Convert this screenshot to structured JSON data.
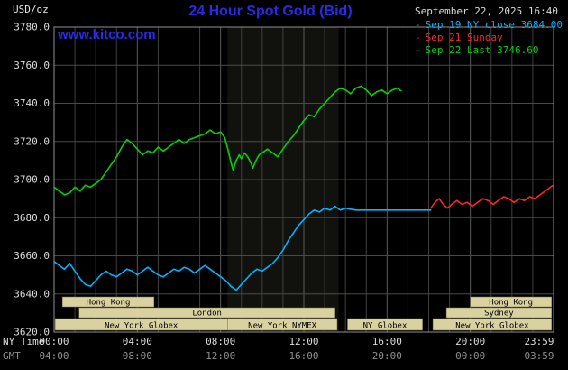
{
  "header": {
    "units_label": "USD/oz",
    "title": "24 Hour Spot Gold (Bid)",
    "datetime": "September 22, 2025 16:40",
    "legend": [
      {
        "marker": "-",
        "label": "Sep 19 NY close 3684.00",
        "color": "#00b4ff"
      },
      {
        "marker": "-",
        "label": "Sep 21 Sunday",
        "color": "#ff2525"
      },
      {
        "marker": "-",
        "label": "Sep 22 Last 3746.60",
        "color": "#00d400"
      }
    ]
  },
  "watermark": {
    "text": "www.kitco.com",
    "color": "#2a2ae8"
  },
  "axes": {
    "ny_time_label": "NY Time",
    "gmt_label": "GMT",
    "x_ticks": [
      {
        "hour": 0,
        "ny": "00:00",
        "gmt": "04:00"
      },
      {
        "hour": 4,
        "ny": "04:00",
        "gmt": "08:00"
      },
      {
        "hour": 8,
        "ny": "08:00",
        "gmt": "12:00"
      },
      {
        "hour": 12,
        "ny": "12:00",
        "gmt": "16:00"
      },
      {
        "hour": 16,
        "ny": "16:00",
        "gmt": "20:00"
      },
      {
        "hour": 20,
        "ny": "20:00",
        "gmt": "00:00"
      },
      {
        "hour": 23.983,
        "ny": "23:59",
        "gmt": "03:59"
      }
    ],
    "y_ticks": [
      "3780.0",
      "3760.0",
      "3740.0",
      "3720.0",
      "3700.0",
      "3680.0",
      "3660.0",
      "3640.0",
      "3620.0"
    ]
  },
  "colors": {
    "background": "#000000",
    "grid_minor": "#3f3f3f",
    "grid_major": "#5a5a5a",
    "frame": "#909090",
    "axis_text": "#dcdcdc",
    "gmt_text": "#8f8f8f",
    "title": "#2a2ae8",
    "datetime_text": "#d9d9d9"
  },
  "chart_data": {
    "type": "line",
    "title": "24 Hour Spot Gold (Bid)",
    "ylabel": "USD/oz",
    "ylim": [
      3620,
      3780
    ],
    "x_range_hours": [
      0,
      24
    ],
    "grid": true,
    "legend_position": "top-right",
    "highlight_band": {
      "start_hour": 8.33,
      "end_hour": 13.67
    },
    "session_style": {
      "fill": "#d9d2a0",
      "border": "#7a7550",
      "text": "#000000"
    },
    "sessions": [
      {
        "row": 0,
        "label": "Hong Kong",
        "start": 0.4,
        "end": 4.8
      },
      {
        "row": 0,
        "label": "Hong Kong",
        "start": 20.0,
        "end": 23.9
      },
      {
        "row": 1,
        "label": "London",
        "start": 1.2,
        "end": 13.5
      },
      {
        "row": 1,
        "label": "Sydney",
        "start": 18.85,
        "end": 23.9
      },
      {
        "row": 2,
        "label": "New York Globex",
        "start": 0.05,
        "end": 8.33
      },
      {
        "row": 2,
        "label": "New York NYMEX",
        "start": 8.33,
        "end": 13.6
      },
      {
        "row": 2,
        "label": "NY Globex",
        "start": 14.1,
        "end": 17.7
      },
      {
        "row": 2,
        "label": "New York Globex",
        "start": 18.2,
        "end": 23.9
      }
    ],
    "series": [
      {
        "id": "sep19",
        "name": "Sep 19 NY close 3684.00",
        "color": "#00b4ff",
        "points": [
          [
            0.0,
            3657
          ],
          [
            0.25,
            3655
          ],
          [
            0.5,
            3653
          ],
          [
            0.75,
            3656
          ],
          [
            1.0,
            3652
          ],
          [
            1.25,
            3648
          ],
          [
            1.5,
            3645
          ],
          [
            1.75,
            3644
          ],
          [
            2.0,
            3647
          ],
          [
            2.25,
            3650
          ],
          [
            2.5,
            3652
          ],
          [
            2.75,
            3650
          ],
          [
            3.0,
            3649
          ],
          [
            3.25,
            3651
          ],
          [
            3.5,
            3653
          ],
          [
            3.75,
            3652
          ],
          [
            4.0,
            3650
          ],
          [
            4.25,
            3652
          ],
          [
            4.5,
            3654
          ],
          [
            4.75,
            3652
          ],
          [
            5.0,
            3650
          ],
          [
            5.25,
            3649
          ],
          [
            5.5,
            3651
          ],
          [
            5.75,
            3653
          ],
          [
            6.0,
            3652
          ],
          [
            6.25,
            3654
          ],
          [
            6.5,
            3653
          ],
          [
            6.75,
            3651
          ],
          [
            7.0,
            3653
          ],
          [
            7.25,
            3655
          ],
          [
            7.5,
            3653
          ],
          [
            7.75,
            3651
          ],
          [
            8.0,
            3649
          ],
          [
            8.25,
            3647
          ],
          [
            8.5,
            3644
          ],
          [
            8.75,
            3642
          ],
          [
            9.0,
            3645
          ],
          [
            9.25,
            3648
          ],
          [
            9.5,
            3651
          ],
          [
            9.75,
            3653
          ],
          [
            10.0,
            3652
          ],
          [
            10.25,
            3654
          ],
          [
            10.5,
            3656
          ],
          [
            10.75,
            3659
          ],
          [
            11.0,
            3663
          ],
          [
            11.25,
            3668
          ],
          [
            11.5,
            3672
          ],
          [
            11.75,
            3676
          ],
          [
            12.0,
            3679
          ],
          [
            12.25,
            3682
          ],
          [
            12.5,
            3684
          ],
          [
            12.75,
            3683
          ],
          [
            13.0,
            3685
          ],
          [
            13.25,
            3684
          ],
          [
            13.5,
            3686
          ],
          [
            13.75,
            3684
          ],
          [
            14.0,
            3685
          ],
          [
            14.5,
            3684
          ],
          [
            15.0,
            3684
          ],
          [
            18.1,
            3684
          ]
        ]
      },
      {
        "id": "sep21",
        "name": "Sep 21 Sunday",
        "color": "#ff2525",
        "points": [
          [
            18.1,
            3685
          ],
          [
            18.3,
            3688
          ],
          [
            18.5,
            3690
          ],
          [
            18.7,
            3687
          ],
          [
            18.9,
            3685
          ],
          [
            19.1,
            3687
          ],
          [
            19.35,
            3689
          ],
          [
            19.6,
            3687
          ],
          [
            19.85,
            3688
          ],
          [
            20.1,
            3686
          ],
          [
            20.35,
            3688
          ],
          [
            20.6,
            3690
          ],
          [
            20.85,
            3689
          ],
          [
            21.1,
            3687
          ],
          [
            21.35,
            3689
          ],
          [
            21.6,
            3691
          ],
          [
            21.85,
            3690
          ],
          [
            22.1,
            3688
          ],
          [
            22.35,
            3690
          ],
          [
            22.6,
            3689
          ],
          [
            22.85,
            3691
          ],
          [
            23.1,
            3690
          ],
          [
            23.35,
            3692
          ],
          [
            23.6,
            3694
          ],
          [
            23.85,
            3696
          ],
          [
            23.98,
            3697
          ]
        ]
      },
      {
        "id": "sep22",
        "name": "Sep 22 Last 3746.60",
        "color": "#00d400",
        "points": [
          [
            0.0,
            3696
          ],
          [
            0.25,
            3694
          ],
          [
            0.5,
            3692
          ],
          [
            0.75,
            3693
          ],
          [
            1.0,
            3696
          ],
          [
            1.25,
            3694
          ],
          [
            1.5,
            3697
          ],
          [
            1.75,
            3696
          ],
          [
            2.0,
            3698
          ],
          [
            2.25,
            3700
          ],
          [
            2.5,
            3704
          ],
          [
            2.75,
            3708
          ],
          [
            3.0,
            3712
          ],
          [
            3.25,
            3717
          ],
          [
            3.5,
            3721
          ],
          [
            3.75,
            3719
          ],
          [
            4.0,
            3716
          ],
          [
            4.25,
            3713
          ],
          [
            4.5,
            3715
          ],
          [
            4.75,
            3714
          ],
          [
            5.0,
            3717
          ],
          [
            5.25,
            3715
          ],
          [
            5.5,
            3717
          ],
          [
            5.75,
            3719
          ],
          [
            6.0,
            3721
          ],
          [
            6.25,
            3719
          ],
          [
            6.5,
            3721
          ],
          [
            6.75,
            3722
          ],
          [
            7.0,
            3723
          ],
          [
            7.25,
            3724
          ],
          [
            7.5,
            3726
          ],
          [
            7.75,
            3724
          ],
          [
            8.0,
            3725
          ],
          [
            8.2,
            3722
          ],
          [
            8.35,
            3716
          ],
          [
            8.5,
            3709
          ],
          [
            8.6,
            3705
          ],
          [
            8.75,
            3710
          ],
          [
            8.9,
            3713
          ],
          [
            9.0,
            3711
          ],
          [
            9.15,
            3714
          ],
          [
            9.3,
            3712
          ],
          [
            9.45,
            3709
          ],
          [
            9.55,
            3706
          ],
          [
            9.7,
            3710
          ],
          [
            9.85,
            3713
          ],
          [
            10.0,
            3714
          ],
          [
            10.25,
            3716
          ],
          [
            10.5,
            3714
          ],
          [
            10.75,
            3712
          ],
          [
            11.0,
            3716
          ],
          [
            11.25,
            3720
          ],
          [
            11.5,
            3723
          ],
          [
            11.75,
            3727
          ],
          [
            12.0,
            3731
          ],
          [
            12.25,
            3734
          ],
          [
            12.5,
            3733
          ],
          [
            12.75,
            3737
          ],
          [
            13.0,
            3740
          ],
          [
            13.25,
            3743
          ],
          [
            13.5,
            3746
          ],
          [
            13.75,
            3748
          ],
          [
            14.0,
            3747
          ],
          [
            14.25,
            3745
          ],
          [
            14.5,
            3748
          ],
          [
            14.75,
            3749
          ],
          [
            15.0,
            3747
          ],
          [
            15.25,
            3744
          ],
          [
            15.5,
            3746
          ],
          [
            15.75,
            3747
          ],
          [
            16.0,
            3745
          ],
          [
            16.25,
            3747
          ],
          [
            16.5,
            3748
          ],
          [
            16.67,
            3746.6
          ]
        ]
      }
    ]
  }
}
